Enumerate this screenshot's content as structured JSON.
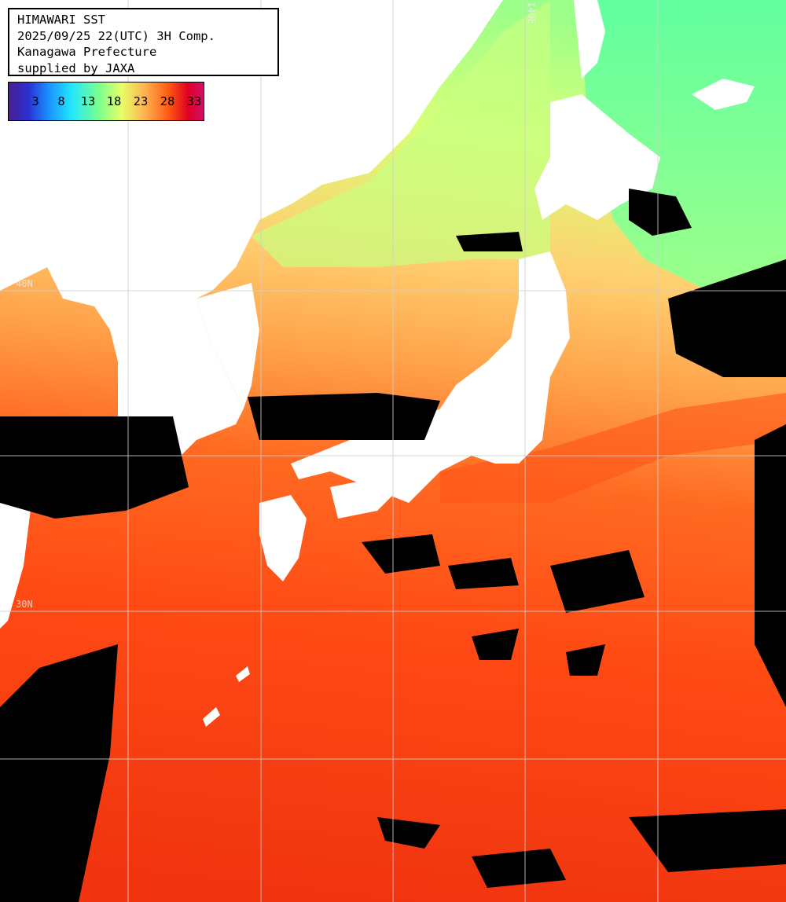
{
  "header": {
    "line1": "HIMAWARI SST",
    "line2": "2025/09/25 22(UTC) 3H Comp.",
    "line3": "Kanagawa Prefecture",
    "line4": "supplied by JAXA"
  },
  "scale": {
    "labels": [
      "3",
      "8",
      "13",
      "18",
      "23",
      "28",
      "33"
    ]
  },
  "grid_labels": {
    "lon_top": "140E",
    "lat_upper": "40N",
    "lat_lower": "30N"
  },
  "colors": {
    "land": "#ffffff",
    "cloud": "#000000",
    "grid": "#d0d0d0",
    "sst_cold": "#22e5ff",
    "sst_mild": "#78ff90",
    "sst_warm": "#ffb050",
    "sst_hot": "#ff4a14"
  }
}
